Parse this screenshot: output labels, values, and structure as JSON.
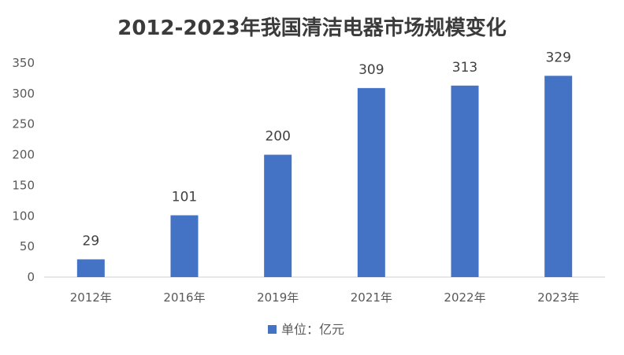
{
  "chart_data": {
    "type": "bar",
    "title": "2012-2023年我国清洁电器市场规模变化",
    "categories": [
      "2012年",
      "2016年",
      "2019年",
      "2021年",
      "2022年",
      "2023年"
    ],
    "series": [
      {
        "name": "单位：亿元",
        "values": [
          29,
          101,
          200,
          309,
          313,
          329
        ],
        "color": "#4472c4"
      }
    ],
    "yticks": [
      "0",
      "50",
      "100",
      "150",
      "200",
      "250",
      "300",
      "350"
    ],
    "ylim": [
      0,
      350
    ],
    "grid": false,
    "legend_position": "bottom"
  }
}
